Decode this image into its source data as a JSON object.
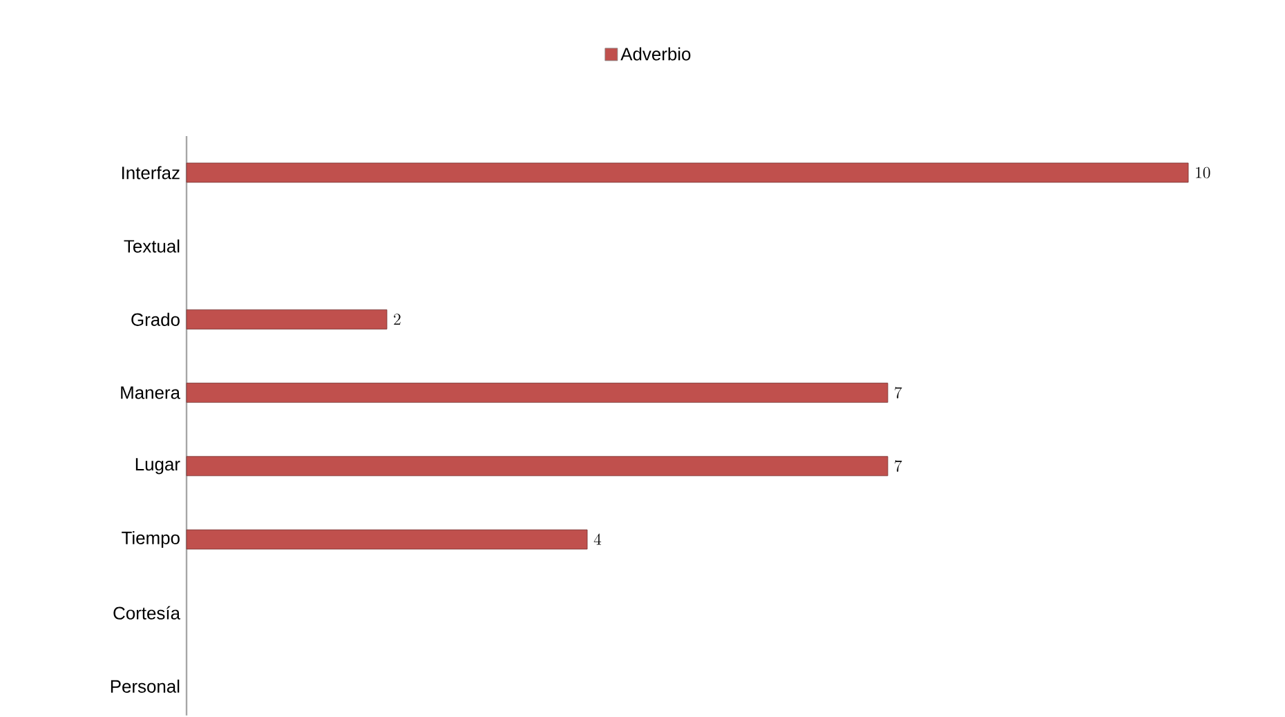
{
  "chart_data": {
    "type": "bar",
    "orientation": "horizontal",
    "categories": [
      "Interfaz",
      "Textual",
      "Grado",
      "Manera",
      "Lugar",
      "Tiempo",
      "Cortesía",
      "Personal"
    ],
    "series": [
      {
        "name": "Adverbio",
        "color": "#c0504d",
        "values": [
          10,
          null,
          2,
          7,
          7,
          4,
          null,
          null
        ]
      }
    ],
    "data_labels": true,
    "relative": false,
    "legend": "top"
  }
}
